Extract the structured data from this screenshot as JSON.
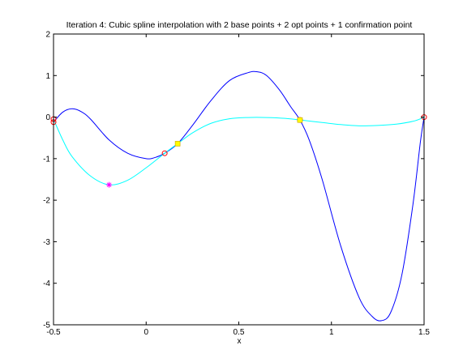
{
  "chart_data": {
    "type": "line",
    "title": "Iteration 4: Cubic spline interpolation with 2 base points + 2 opt points + 1 confirmation point",
    "xlabel": "x",
    "ylabel": "",
    "xlim": [
      -0.5,
      1.5
    ],
    "ylim": [
      -5,
      2
    ],
    "xticks": [
      "-0.5",
      "0",
      "0.5",
      "1",
      "1.5"
    ],
    "yticks": [
      "-5",
      "-4",
      "-3",
      "-2",
      "-1",
      "0",
      "1",
      "2"
    ],
    "grid": false,
    "legend": "none",
    "colors": {
      "blue_curve": "#0000ff",
      "cyan_curve": "#00ffff",
      "circle_marker": "#ff0000",
      "star_marker": "#ff00ff",
      "square_marker": "#ffff00",
      "axes": "#000000"
    },
    "series": [
      {
        "style": "line",
        "color": "#0000ff",
        "x": [
          -0.5,
          -0.45,
          -0.4,
          -0.35,
          -0.3,
          -0.2,
          -0.1,
          0.0,
          0.05,
          0.1,
          0.17,
          0.25,
          0.35,
          0.45,
          0.55,
          0.6,
          0.65,
          0.72,
          0.78,
          0.83,
          0.88,
          0.95,
          1.05,
          1.15,
          1.22,
          1.27,
          1.32,
          1.38,
          1.44,
          1.48,
          1.5
        ],
        "y": [
          -0.12,
          0.12,
          0.2,
          0.13,
          -0.05,
          -0.55,
          -0.87,
          -1.0,
          -0.97,
          -0.87,
          -0.64,
          -0.2,
          0.4,
          0.88,
          1.07,
          1.09,
          1.0,
          0.65,
          0.25,
          -0.07,
          -0.55,
          -1.5,
          -3.1,
          -4.35,
          -4.8,
          -4.9,
          -4.7,
          -3.8,
          -2.1,
          -0.6,
          0.0
        ]
      },
      {
        "style": "line",
        "color": "#00ffff",
        "x": [
          -0.5,
          -0.45,
          -0.4,
          -0.3,
          -0.2,
          -0.1,
          0.0,
          0.1,
          0.17,
          0.25,
          0.35,
          0.45,
          0.55,
          0.65,
          0.75,
          0.83,
          0.95,
          1.05,
          1.15,
          1.25,
          1.35,
          1.45,
          1.5
        ],
        "y": [
          -0.05,
          -0.55,
          -0.95,
          -1.42,
          -1.63,
          -1.52,
          -1.22,
          -0.87,
          -0.64,
          -0.38,
          -0.15,
          -0.04,
          -0.01,
          -0.01,
          -0.03,
          -0.07,
          -0.13,
          -0.18,
          -0.21,
          -0.2,
          -0.17,
          -0.09,
          0.0
        ]
      },
      {
        "style": "marker",
        "marker": "circle",
        "color": "#ff0000",
        "x": [
          -0.5,
          -0.5,
          0.1,
          0.83,
          1.5
        ],
        "y": [
          -0.05,
          -0.12,
          -0.87,
          -0.07,
          0.0
        ]
      },
      {
        "style": "marker",
        "marker": "star",
        "color": "#ff00ff",
        "x": [
          -0.2
        ],
        "y": [
          -1.63
        ]
      },
      {
        "style": "marker",
        "marker": "square",
        "color": "#ffff00",
        "x": [
          0.17,
          0.83
        ],
        "y": [
          -0.64,
          -0.07
        ]
      }
    ]
  }
}
